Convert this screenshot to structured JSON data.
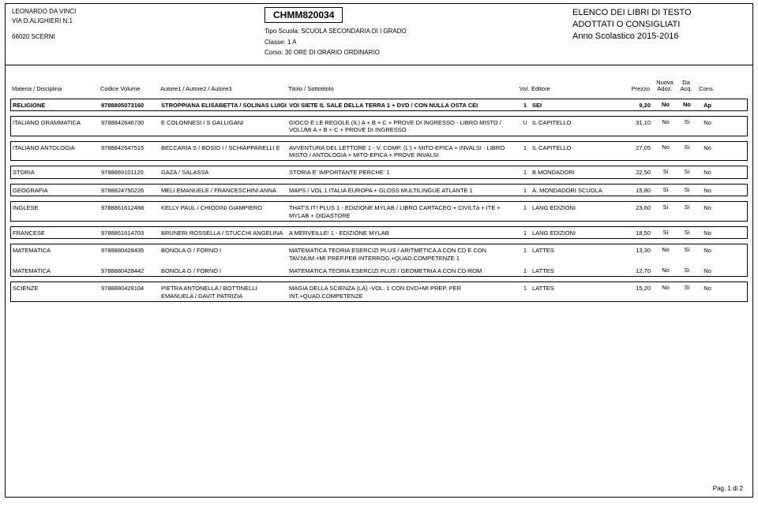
{
  "header": {
    "school_name": "LEONARDO DA VINCI",
    "address1": "VIA D.ALIGHIERI N.1",
    "address2": "66020  SCERNI",
    "code": "CHMM820034",
    "tipo_label": "Tipo Scuola:",
    "tipo_val": "SCUOLA SECONDARIA DI I GRADO",
    "classe_label": "Classe:",
    "classe_val": "1 A",
    "corso_label": "Corso:",
    "corso_val": "30 ORE DI ORARIO ORDINARIO",
    "title1": "ELENCO DEI LIBRI DI TESTO",
    "title2": "ADOTTATI O CONSIGLIATI",
    "anno": "Anno Scolastico 2015-2016"
  },
  "columns": {
    "materia": "Materia / Disciplina",
    "codice": "Codice Volume",
    "autore": "Autore1 / Autore2 / Autore3",
    "titolo": "Titolo / Sottotitolo",
    "vol": "Vol.",
    "editore": "Editore",
    "prezzo": "Prezzo",
    "nuova1": "Nuova",
    "nuova2": "Adoz.",
    "da1": "Da",
    "da2": "Acq.",
    "cons": "Cons."
  },
  "rows": [
    [
      {
        "mat": "RELIGIONE",
        "cod": "9788805073160",
        "aut": "STROPPIANA ELISABETTA / SOLINAS LUIGI",
        "tit": "VOI SIETE IL SALE DELLA TERRA 1 + DVD / CON NULLA OSTA CEI",
        "vol": "1",
        "edi": "SEI",
        "pre": "9,20",
        "nuo": "No",
        "da": "No",
        "con": "Ap",
        "bold": true
      }
    ],
    [
      {
        "mat": "ITALIANO GRAMMATICA",
        "cod": "9788842646730",
        "aut": "E COLONNESI / S GALLIGANI",
        "tit": "GIOCO E LE REGOLE (IL) A + B + C + PROVE DI INGRESSO - LIBRO MISTO / VOLUMI A + B + C + PROVE DI INGRESSO",
        "vol": "U",
        "edi": "IL CAPITELLO",
        "pre": "31,10",
        "nuo": "No",
        "da": "Si",
        "con": "No"
      }
    ],
    [
      {
        "mat": "ITALIANO ANTOLOGIA",
        "cod": "9788842647515",
        "aut": "BECCARIA S / BOSIO I / SCHIAPPARELLI E",
        "tit": "AVVENTURA DEL LETTORE 1 - V. COMP. (L') + MITO-EPICA + INVALSI - LIBRO MISTO / ANTOLOGIA + MITO-EPICA + PROVE INVALSI",
        "vol": "1",
        "edi": "IL CAPITELLO",
        "pre": "27,05",
        "nuo": "No",
        "da": "Si",
        "con": "No"
      }
    ],
    [
      {
        "mat": "STORIA",
        "cod": "9788869101120",
        "aut": "GAZA / SALASSA",
        "tit": "STORIA E' IMPORTANTE PERCHE' 1",
        "vol": "1",
        "edi": "B.MONDADORI",
        "pre": "22,50",
        "nuo": "Si",
        "da": "Si",
        "con": "No"
      }
    ],
    [
      {
        "mat": "GEOGRAFIA",
        "cod": "9788824750226",
        "aut": "MELI EMANUELE / FRANCESCHINI ANNA",
        "tit": "MAPS / VOL 1 ITALIA EUROPA + GLOSS MULTILINGUE ATLANTE 1",
        "vol": "1",
        "edi": "A. MONDADORI SCUOLA",
        "pre": "15,80",
        "nuo": "Si",
        "da": "Si",
        "con": "No"
      }
    ],
    [
      {
        "mat": "INGLESE",
        "cod": "9788861612488",
        "aut": "KELLY PAUL / CHIODINI GIAMPIERO",
        "tit": "THAT'S IT! PLUS 1 - EDIZIONE MYLAB / LIBRO CARTACEO + CIVILTà + ITE + MYLAB + DIDASTORE",
        "vol": "1",
        "edi": "LANG EDIZIONI",
        "pre": "23,60",
        "nuo": "Si",
        "da": "Si",
        "con": "No"
      }
    ],
    [
      {
        "mat": "FRANCESE",
        "cod": "9788861614703",
        "aut": "BRUNERI ROSSELLA / STUCCHI ANGELINA",
        "tit": "A MERVEILLE! 1 - EDIZIONE MYLAB",
        "vol": "1",
        "edi": "LANG EDIZIONI",
        "pre": "18,50",
        "nuo": "Si",
        "da": "Si",
        "con": "No"
      }
    ],
    [
      {
        "mat": "MATEMATICA",
        "cod": "9788880428435",
        "aut": "BONOLA G / FORNO I",
        "tit": "MATEMATICA TEORIA ESERCIZI PLUS / ARITMETICA A CON CD E CON TAV.NUM.+MI PREP.PER INTERROG.+QUAD.COMPETENZE 1",
        "vol": "1",
        "edi": "LATTES",
        "pre": "13,30",
        "nuo": "No",
        "da": "Si",
        "con": "No"
      },
      {
        "mat": "MATEMATICA",
        "cod": "9788880428442",
        "aut": "BONOLA G / FORNO I",
        "tit": "MATEMATICA TEORIA ESERCIZI PLUS / GEOMETRIA A CON CD-ROM",
        "vol": "1",
        "edi": "LATTES",
        "pre": "12,70",
        "nuo": "No",
        "da": "Si",
        "con": "No"
      }
    ],
    [
      {
        "mat": "SCIENZE",
        "cod": "9788880429104",
        "aut": "PIETRA ANTONELLA / BOTTINELLI EMANUELA / DAVIT PATRIZIA",
        "tit": "MAGIA DELLA SCIENZA (LA) -VOL. 1 CON DVD+MI PREP. PER INT.+QUAD.COMPETENZE",
        "vol": "1",
        "edi": "LATTES",
        "pre": "15,20",
        "nuo": "No",
        "da": "Si",
        "con": "No"
      }
    ]
  ],
  "footer": {
    "page": "Pag. 1 di 2"
  }
}
